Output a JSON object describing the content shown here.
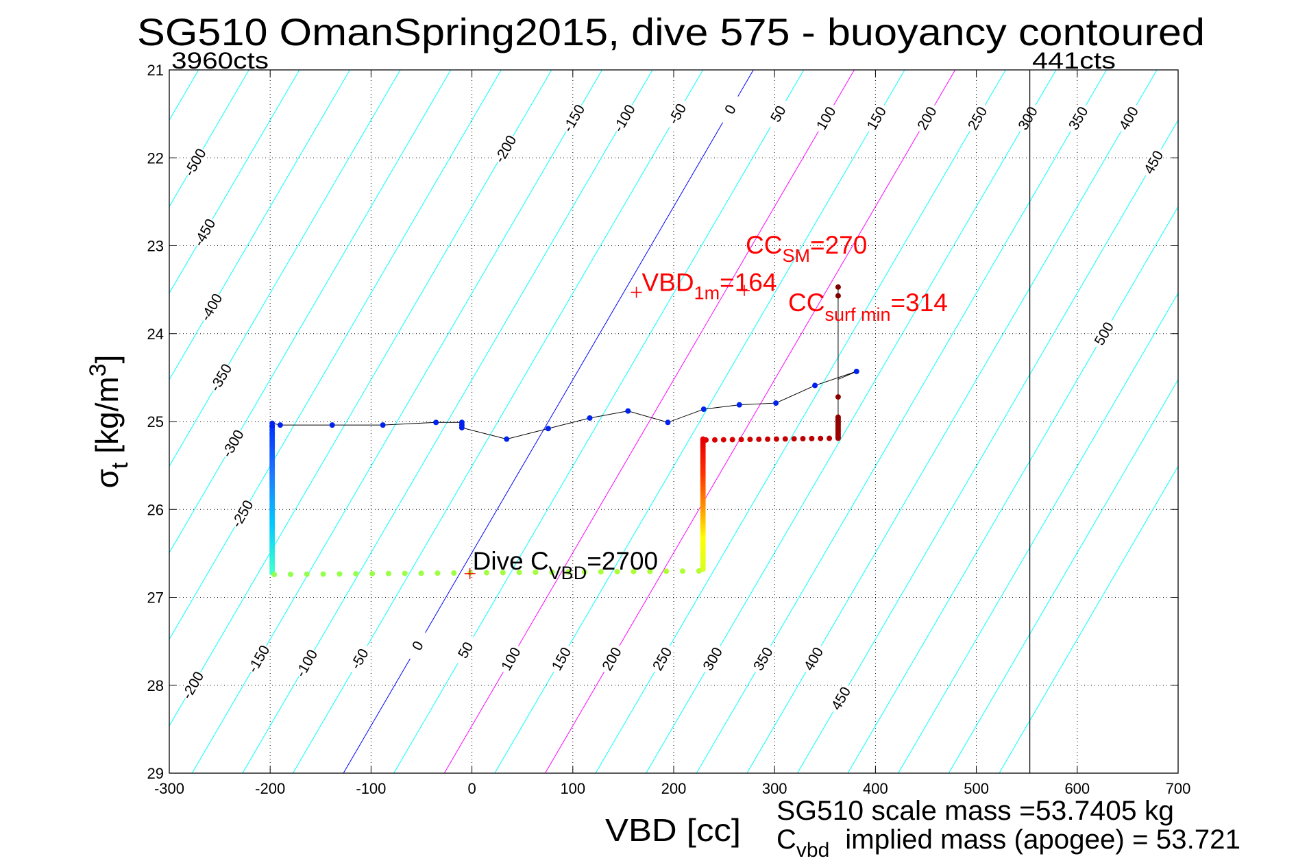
{
  "chart_data": {
    "type": "scatter",
    "title": "SG510 OmanSpring2015, dive 575 - buoyancy contoured",
    "xlabel": "VBD [cc]",
    "ylabel": {
      "main": "σ",
      "sub": "t",
      "unit": " [kg/m",
      "sup": "3",
      "close": "]"
    },
    "xlim": [
      -300,
      700
    ],
    "ylim": [
      21,
      29
    ],
    "y_reversed": true,
    "grid": true,
    "xticks": [
      "-300",
      "-200",
      "-100",
      "0",
      "100",
      "200",
      "300",
      "400",
      "500",
      "600",
      "700"
    ],
    "xtick_values": [
      -300,
      -200,
      -100,
      0,
      100,
      200,
      300,
      400,
      500,
      600,
      700
    ],
    "yticks": [
      "21",
      "22",
      "23",
      "24",
      "25",
      "26",
      "27",
      "28",
      "29"
    ],
    "ytick_values": [
      21,
      22,
      23,
      24,
      25,
      26,
      27,
      28,
      29
    ],
    "contours": {
      "levels_from": -600,
      "levels_to": 650,
      "step": 50,
      "zero_vbd_at_sigma21": 279,
      "vbd_per_sigma": -50.8,
      "color_default": "#00ffff",
      "color_zero": "#0000ff",
      "highlight_levels": [
        100,
        200
      ],
      "color_highlight": "#ff00ff",
      "labels": [
        {
          "text": "-500",
          "b": -500,
          "s": 22.05
        },
        {
          "text": "-450",
          "b": -450,
          "s": 22.85
        },
        {
          "text": "-400",
          "b": -400,
          "s": 23.7
        },
        {
          "text": "-350",
          "b": -350,
          "s": 24.5
        },
        {
          "text": "-300",
          "b": -300,
          "s": 25.25
        },
        {
          "text": "-250",
          "b": -250,
          "s": 26.05
        },
        {
          "text": "-200",
          "b": -200,
          "s": 21.9
        },
        {
          "text": "-150",
          "b": -150,
          "s": 21.55
        },
        {
          "text": "-100",
          "b": -100,
          "s": 21.55
        },
        {
          "text": "-50",
          "b": -50,
          "s": 21.5
        },
        {
          "text": "0",
          "b": 0,
          "s": 21.45
        },
        {
          "text": "50",
          "b": 50,
          "s": 21.5
        },
        {
          "text": "100",
          "b": 100,
          "s": 21.55
        },
        {
          "text": "150",
          "b": 150,
          "s": 21.55
        },
        {
          "text": "200",
          "b": 200,
          "s": 21.55
        },
        {
          "text": "250",
          "b": 250,
          "s": 21.55
        },
        {
          "text": "300",
          "b": 300,
          "s": 21.55
        },
        {
          "text": "350",
          "b": 350,
          "s": 21.55
        },
        {
          "text": "400",
          "b": 400,
          "s": 21.55
        },
        {
          "text": "450",
          "b": 450,
          "s": 22.05
        },
        {
          "text": "500",
          "b": 500,
          "s": 24.0
        },
        {
          "text": "-200",
          "b": -200,
          "s": 28.0
        },
        {
          "text": "-150",
          "b": -150,
          "s": 27.7
        },
        {
          "text": "-100",
          "b": -100,
          "s": 27.75
        },
        {
          "text": "-50",
          "b": -50,
          "s": 27.7
        },
        {
          "text": "0",
          "b": 0,
          "s": 27.55
        },
        {
          "text": "50",
          "b": 50,
          "s": 27.6
        },
        {
          "text": "100",
          "b": 100,
          "s": 27.7
        },
        {
          "text": "150",
          "b": 150,
          "s": 27.7
        },
        {
          "text": "200",
          "b": 200,
          "s": 27.7
        },
        {
          "text": "250",
          "b": 250,
          "s": 27.7
        },
        {
          "text": "300",
          "b": 300,
          "s": 27.7
        },
        {
          "text": "350",
          "b": 350,
          "s": 27.7
        },
        {
          "text": "400",
          "b": 400,
          "s": 27.7
        },
        {
          "text": "450",
          "b": 450,
          "s": 28.15
        }
      ]
    },
    "climb_points": {
      "color": "#0022ee",
      "vbd": [
        -198,
        -198,
        -190,
        -138.5,
        -88.3,
        -35.6,
        -10,
        -10,
        -10,
        34.4,
        75.6,
        116.8,
        154.7,
        194.2,
        229.7,
        265.1,
        301.3,
        340,
        381.2
      ],
      "sigma": [
        25.05,
        25.02,
        25.04,
        25.04,
        25.04,
        25.01,
        25.01,
        25.04,
        25.07,
        25.2,
        25.08,
        24.96,
        24.88,
        25.01,
        24.86,
        24.81,
        24.79,
        24.59,
        24.43
      ]
    },
    "dive_segments": [
      {
        "from": [
          -198,
          25.05
        ],
        "to": [
          -198,
          26.72
        ],
        "n": 70,
        "colors": [
          "#0030ff",
          "#1e78ff",
          "#00c8ff",
          "#40ffd0"
        ]
      },
      {
        "from": [
          -196,
          26.74
        ],
        "to": [
          225,
          26.7
        ],
        "n": 27,
        "colors": [
          "#90ff50",
          "#b0ff30"
        ]
      },
      {
        "from": [
          229,
          26.68
        ],
        "to": [
          229,
          25.2
        ],
        "n": 70,
        "colors": [
          "#d8ff20",
          "#ffff00",
          "#ff9000",
          "#ff3000",
          "#e80000"
        ]
      },
      {
        "from": [
          232,
          25.21
        ],
        "to": [
          363,
          25.19
        ],
        "n": 16,
        "colors": [
          "#e00000",
          "#b00000"
        ]
      },
      {
        "from": [
          363,
          25.18
        ],
        "to": [
          363,
          24.95
        ],
        "n": 12,
        "colors": [
          "#a00000",
          "#900000"
        ]
      },
      {
        "from": [
          363,
          24.72
        ],
        "to": [
          363,
          24.72
        ],
        "n": 1,
        "colors": [
          "#880000"
        ]
      },
      {
        "from": [
          363,
          23.47
        ],
        "to": [
          363,
          23.57
        ],
        "n": 2,
        "colors": [
          "#800000"
        ]
      }
    ],
    "vertical_line_vbd": 553,
    "annotations": {
      "left_counts": "3960cts",
      "right_counts": "441cts",
      "vbd1m": {
        "vbd": 163,
        "sigma": 23.53,
        "main": "VBD",
        "sub": "1m",
        "value": "=164"
      },
      "ccsm": {
        "vbd": 270,
        "sigma": 23.51,
        "main": "CC",
        "sub": "SM",
        "value": "=270"
      },
      "ccsurf": {
        "main": "CC",
        "sub": "surf min",
        "value": "=314"
      },
      "divec": {
        "vbd": -2,
        "sigma": 26.73,
        "main": "Dive C",
        "sub": "VBD",
        "value": "=2700"
      },
      "scale_mass": "SG510 scale mass =53.7405 kg",
      "implied_main": "C",
      "implied_sub": "vbd",
      "implied_rest": " implied mass (apogee) = 53.721"
    }
  }
}
